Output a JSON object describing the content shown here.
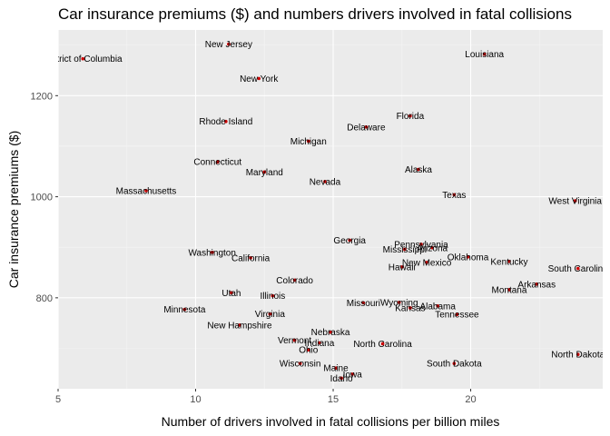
{
  "chart_data": {
    "type": "scatter",
    "title": "Car insurance premiums ($) and numbers drivers involved in fatal collisions",
    "xlabel": "Number of drivers involved in fatal collisions per billion miles",
    "ylabel": "Car insurance premiums ($)",
    "xlim": [
      5,
      24.8
    ],
    "ylim": [
      620,
      1330
    ],
    "xticks": [
      5,
      10,
      15,
      20
    ],
    "yticks": [
      800,
      1000,
      1200
    ],
    "grid": true,
    "point_color": "#cc0000",
    "panel_color": "#ebebeb",
    "points": [
      {
        "label": "District of Columbia",
        "x": 5.9,
        "y": 1273
      },
      {
        "label": "New Jersey",
        "x": 11.2,
        "y": 1302
      },
      {
        "label": "Louisiana",
        "x": 20.5,
        "y": 1282
      },
      {
        "label": "New York",
        "x": 12.3,
        "y": 1234
      },
      {
        "label": "Rhode Island",
        "x": 11.1,
        "y": 1149
      },
      {
        "label": "Florida",
        "x": 17.8,
        "y": 1160
      },
      {
        "label": "Delaware",
        "x": 16.2,
        "y": 1138
      },
      {
        "label": "Michigan",
        "x": 14.1,
        "y": 1110
      },
      {
        "label": "Connecticut",
        "x": 10.8,
        "y": 1069
      },
      {
        "label": "Maryland",
        "x": 12.5,
        "y": 1049
      },
      {
        "label": "Alaska",
        "x": 18.1,
        "y": 1054
      },
      {
        "label": "Nevada",
        "x": 14.7,
        "y": 1030
      },
      {
        "label": "Massachusetts",
        "x": 8.2,
        "y": 1012
      },
      {
        "label": "Texas",
        "x": 19.4,
        "y": 1004
      },
      {
        "label": "West Virginia",
        "x": 23.8,
        "y": 992
      },
      {
        "label": "Georgia",
        "x": 15.6,
        "y": 914
      },
      {
        "label": "Pennsylvania",
        "x": 18.2,
        "y": 906
      },
      {
        "label": "Arizona",
        "x": 18.6,
        "y": 899
      },
      {
        "label": "Mississippi",
        "x": 17.6,
        "y": 896
      },
      {
        "label": "Washington",
        "x": 10.6,
        "y": 890
      },
      {
        "label": "California",
        "x": 12.0,
        "y": 879
      },
      {
        "label": "Oklahoma",
        "x": 19.9,
        "y": 881
      },
      {
        "label": "Kentucky",
        "x": 21.4,
        "y": 872
      },
      {
        "label": "New Mexico",
        "x": 18.4,
        "y": 870
      },
      {
        "label": "Hawaii",
        "x": 17.5,
        "y": 861
      },
      {
        "label": "South Carolina",
        "x": 23.9,
        "y": 858
      },
      {
        "label": "Colorado",
        "x": 13.6,
        "y": 835
      },
      {
        "label": "Arkansas",
        "x": 22.4,
        "y": 827
      },
      {
        "label": "Montana",
        "x": 21.4,
        "y": 816
      },
      {
        "label": "Utah",
        "x": 11.3,
        "y": 810
      },
      {
        "label": "Ohio",
        "x": 14.1,
        "y": 697
      },
      {
        "label": "Illinois",
        "x": 12.8,
        "y": 804
      },
      {
        "label": "Indiana",
        "x": 14.5,
        "y": 711
      },
      {
        "label": "Missouri",
        "x": 16.1,
        "y": 790
      },
      {
        "label": "Wyoming",
        "x": 17.4,
        "y": 791
      },
      {
        "label": "Kansas",
        "x": 17.8,
        "y": 780
      },
      {
        "label": "Alabama",
        "x": 18.8,
        "y": 784
      },
      {
        "label": "Minnesota",
        "x": 9.6,
        "y": 777
      },
      {
        "label": "Virginia",
        "x": 12.7,
        "y": 768
      },
      {
        "label": "Tennessee",
        "x": 19.5,
        "y": 767
      },
      {
        "label": "New Hampshire",
        "x": 11.6,
        "y": 746
      },
      {
        "label": "Nebraska",
        "x": 14.9,
        "y": 732
      },
      {
        "label": "Vermont",
        "x": 13.6,
        "y": 716
      },
      {
        "label": "North Carolina",
        "x": 16.8,
        "y": 709
      },
      {
        "label": "Wisconsin",
        "x": 13.8,
        "y": 670
      },
      {
        "label": "Maine",
        "x": 15.1,
        "y": 661
      },
      {
        "label": "Iowa",
        "x": 15.7,
        "y": 649
      },
      {
        "label": "Idaho",
        "x": 15.3,
        "y": 641
      },
      {
        "label": "South Dakota",
        "x": 19.4,
        "y": 670
      },
      {
        "label": "North Dakota",
        "x": 23.9,
        "y": 688
      }
    ]
  }
}
